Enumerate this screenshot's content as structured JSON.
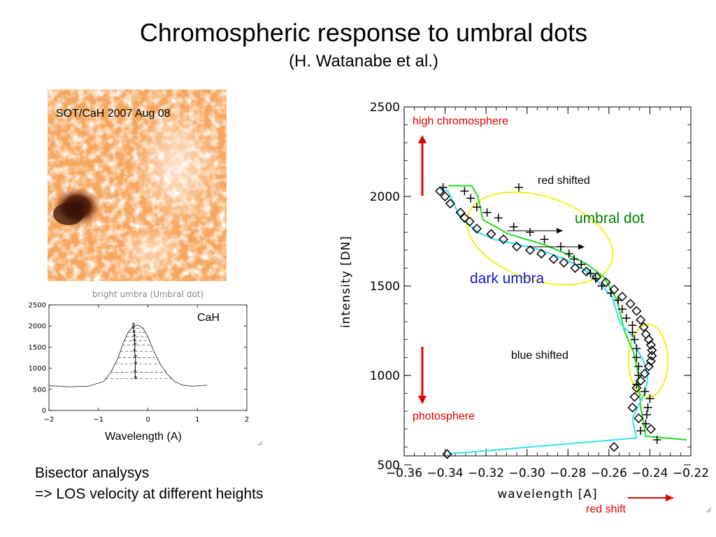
{
  "slide": {
    "title": "Chromospheric response to umbral dots",
    "subtitle": "(H. Watanabe et al.)",
    "image_label": "SOT/CaH 2007 Aug 08",
    "bottom_line1": "Bisector analysys",
    "bottom_line2": "=> LOS velocity at different heights"
  },
  "colors": {
    "image_base": "#f6a75f",
    "image_dark": "#4a1c0c",
    "arrow_red": "#e00000",
    "annot_red": "#e00000",
    "umbral_green": "#008000",
    "dark_blue": "#1515c8",
    "ellipse_yellow": "#f0f000",
    "green_line": "#22dd22",
    "cyan_line": "#33e0f0"
  },
  "chart_data": [
    {
      "type": "line",
      "title": "bright umbra (Umbral dot)",
      "xlabel": "Wavelength (A)",
      "ylabel": "",
      "xlim": [
        -2,
        2
      ],
      "ylim": [
        0,
        2500
      ],
      "xticks": [
        "-2",
        "-1",
        "0",
        "1",
        "2"
      ],
      "yticks": [
        "0",
        "500",
        "1000",
        "1500",
        "2000",
        "2500"
      ],
      "annotation": "CaH",
      "profile": {
        "x": [
          -2.0,
          -1.6,
          -1.2,
          -0.9,
          -0.75,
          -0.6,
          -0.5,
          -0.4,
          -0.3,
          -0.2,
          -0.1,
          0.0,
          0.1,
          0.25,
          0.4,
          0.55,
          0.7,
          0.9,
          1.2
        ],
        "y": [
          590,
          560,
          575,
          680,
          900,
          1250,
          1600,
          1850,
          1990,
          2020,
          1950,
          1750,
          1450,
          1100,
          850,
          680,
          600,
          575,
          600
        ]
      },
      "bisector": {
        "x": [
          -0.29,
          -0.29,
          -0.28,
          -0.27,
          -0.27,
          -0.26,
          -0.27,
          -0.25,
          -0.25,
          -0.26,
          -0.25
        ],
        "y": [
          2020,
          1950,
          1850,
          1750,
          1650,
          1550,
          1400,
          1250,
          1100,
          900,
          750
        ]
      }
    },
    {
      "type": "scatter",
      "title": "",
      "xlabel": "wavelength [A]",
      "ylabel": "intensity [DN]",
      "xlim": [
        -0.36,
        -0.22
      ],
      "ylim": [
        550,
        2500
      ],
      "xticks": [
        "-0.36",
        "-0.34",
        "-0.32",
        "-0.30",
        "-0.28",
        "-0.26",
        "-0.24",
        "-0.22"
      ],
      "yticks": [
        "500",
        "1000",
        "1500",
        "2000",
        "2500"
      ],
      "series": [
        {
          "marker": "diamond",
          "x": [
            -0.3425,
            -0.34,
            -0.3375,
            -0.3325,
            -0.3305,
            -0.328,
            -0.3245,
            -0.3175,
            -0.3115,
            -0.305,
            -0.2985,
            -0.293,
            -0.287,
            -0.282,
            -0.2765,
            -0.271,
            -0.266,
            -0.2615,
            -0.2575,
            -0.2535,
            -0.2495,
            -0.2465,
            -0.2445,
            -0.243,
            -0.242,
            -0.2405,
            -0.2395,
            -0.239,
            -0.239,
            -0.2395,
            -0.2405,
            -0.2425,
            -0.2445,
            -0.2465,
            -0.2475,
            -0.2485,
            -0.2455,
            -0.2395,
            -0.339,
            -0.2575
          ],
          "y": [
            2030,
            2000,
            1960,
            1910,
            1880,
            1860,
            1820,
            1790,
            1760,
            1720,
            1700,
            1680,
            1650,
            1630,
            1600,
            1580,
            1550,
            1520,
            1480,
            1440,
            1400,
            1360,
            1310,
            1270,
            1230,
            1200,
            1170,
            1140,
            1110,
            1080,
            1050,
            1010,
            970,
            930,
            880,
            820,
            760,
            700,
            560,
            600
          ]
        },
        {
          "marker": "plus",
          "x": [
            -0.341,
            -0.3305,
            -0.3275,
            -0.3245,
            -0.3195,
            -0.314,
            -0.3065,
            -0.2985,
            -0.2915,
            -0.2835,
            -0.2795,
            -0.277,
            -0.2735,
            -0.269,
            -0.2665,
            -0.2635,
            -0.259,
            -0.2555,
            -0.2535,
            -0.2515,
            -0.2485,
            -0.2485,
            -0.2475,
            -0.2465,
            -0.2465,
            -0.2455,
            -0.2455,
            -0.2465,
            -0.2425,
            -0.24,
            -0.241,
            -0.2415,
            -0.242,
            -0.2445,
            -0.2365,
            -0.304
          ],
          "y": [
            2050,
            2030,
            1990,
            1940,
            1910,
            1880,
            1830,
            1800,
            1760,
            1720,
            1680,
            1650,
            1620,
            1570,
            1540,
            1500,
            1460,
            1420,
            1370,
            1320,
            1280,
            1240,
            1200,
            1150,
            1100,
            1050,
            1000,
            950,
            910,
            870,
            820,
            780,
            730,
            690,
            640,
            2050
          ]
        }
      ],
      "lines": [
        {
          "name": "green",
          "x": [
            -0.3385,
            -0.327,
            -0.324,
            -0.3215,
            -0.309,
            -0.2915,
            -0.281,
            -0.2705,
            -0.2625,
            -0.256,
            -0.2535,
            -0.2525,
            -0.248,
            -0.2455,
            -0.246,
            -0.245,
            -0.2445,
            -0.2425,
            -0.242,
            -0.222
          ],
          "y": [
            2060,
            2060,
            2000,
            1870,
            1790,
            1730,
            1680,
            1620,
            1550,
            1420,
            1300,
            1250,
            1130,
            1000,
            950,
            900,
            820,
            700,
            660,
            640
          ]
        },
        {
          "name": "cyan",
          "x": [
            -0.3425,
            -0.3385,
            -0.337,
            -0.3325,
            -0.327,
            -0.324,
            -0.316,
            -0.304,
            -0.293,
            -0.2815,
            -0.2735,
            -0.269,
            -0.2585,
            -0.2545,
            -0.2485,
            -0.2455,
            -0.243,
            -0.241,
            -0.2415,
            -0.2425,
            -0.2465,
            -0.2485,
            -0.2475,
            -0.2465,
            -0.339
          ],
          "y": [
            2040,
            2030,
            1990,
            1880,
            1830,
            1800,
            1760,
            1730,
            1700,
            1650,
            1600,
            1570,
            1440,
            1290,
            1220,
            1130,
            1080,
            1000,
            950,
            900,
            810,
            760,
            700,
            650,
            560
          ]
        }
      ],
      "annotations": [
        "high chromosphere",
        "red shifted",
        "umbral dot",
        "dark umbra",
        "blue shifted",
        "photosphere",
        "red shift"
      ]
    }
  ]
}
